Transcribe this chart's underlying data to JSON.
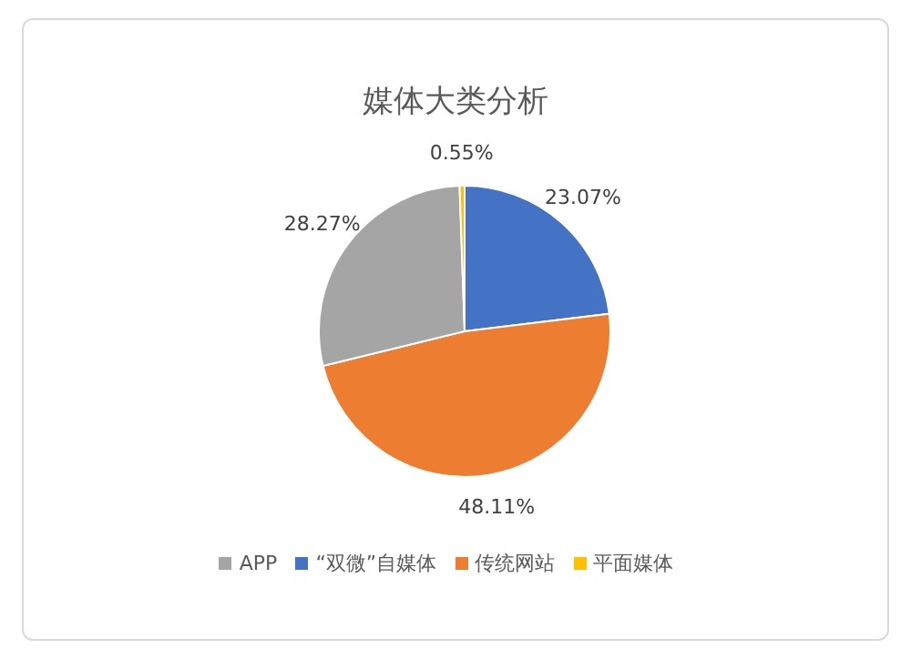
{
  "chart_data": {
    "type": "pie",
    "title": "媒体大类分析",
    "categories": [
      "“双微”自媒体",
      "传统网站",
      "APP",
      "平面媒体"
    ],
    "values": [
      23.07,
      48.11,
      28.27,
      0.55
    ],
    "value_labels": [
      "23.07%",
      "48.11%",
      "28.27%",
      "0.55%"
    ],
    "colors": [
      "#4472c4",
      "#ed7d31",
      "#a5a5a5",
      "#ffc000"
    ],
    "legend": "bottom"
  }
}
